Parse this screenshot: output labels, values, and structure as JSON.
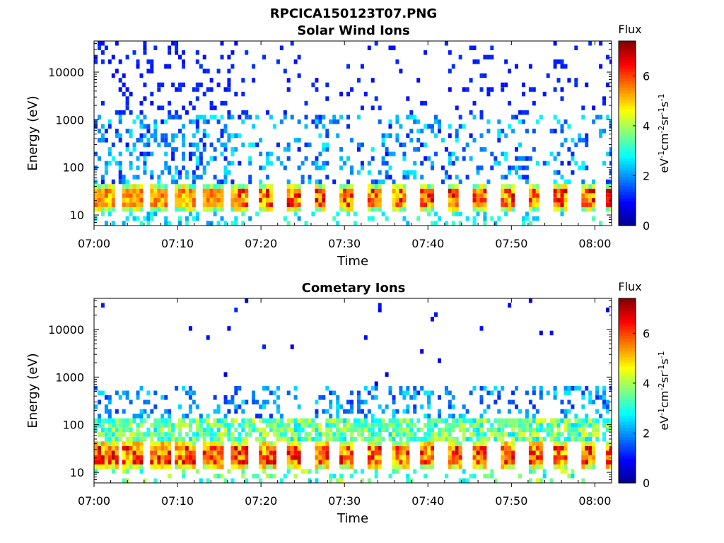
{
  "figure": {
    "title": "RPCICA150123T07.PNG",
    "colors": {
      "background": "#ffffff",
      "axis": "#000000"
    }
  },
  "colormap": [
    "#00008f",
    "#0000ff",
    "#0080ff",
    "#00ffff",
    "#80ff80",
    "#ffff00",
    "#ff8000",
    "#ff0000",
    "#800000"
  ],
  "chart_data": [
    {
      "type": "heatmap",
      "title": "Solar Wind Ions",
      "xlabel": "Time",
      "ylabel": "Energy (eV)",
      "xlim": [
        "07:00",
        "08:02"
      ],
      "x_ticks": [
        "07:00",
        "07:10",
        "07:20",
        "07:30",
        "07:40",
        "07:50",
        "08:00"
      ],
      "y_scale": "log",
      "ylim": [
        6,
        45000
      ],
      "y_ticks": [
        10,
        100,
        1000,
        10000
      ],
      "y_tick_labels": [
        "10",
        "100",
        "1000",
        "10000"
      ],
      "colorbar": {
        "label_top": "Flux",
        "label_unit": "eV-1cm-2sr-1s-1",
        "range": [
          0,
          7.4
        ],
        "ticks": [
          0,
          2,
          4,
          6
        ],
        "tick_labels": [
          "0",
          "2",
          "4",
          "6"
        ]
      },
      "approx_structure": {
        "sweep_period_min": 3.2,
        "peak_band_energy_eV": [
          15,
          35
        ],
        "peak_flux": 7,
        "early_bursts_flux": 5,
        "high_energy_sparse_flux": 1
      }
    },
    {
      "type": "heatmap",
      "title": "Cometary Ions",
      "xlabel": "Time",
      "ylabel": "Energy (eV)",
      "xlim": [
        "07:00",
        "08:02"
      ],
      "x_ticks": [
        "07:00",
        "07:10",
        "07:20",
        "07:30",
        "07:40",
        "07:50",
        "08:00"
      ],
      "y_scale": "log",
      "ylim": [
        6,
        45000
      ],
      "y_ticks": [
        10,
        100,
        1000,
        10000
      ],
      "y_tick_labels": [
        "10",
        "100",
        "1000",
        "10000"
      ],
      "colorbar": {
        "label_top": "Flux",
        "label_unit": "eV-1cm-2sr-1s-1",
        "range": [
          0,
          7.4
        ],
        "ticks": [
          0,
          2,
          4,
          6
        ],
        "tick_labels": [
          "0",
          "2",
          "4",
          "6"
        ]
      },
      "approx_structure": {
        "sweep_period_min": 3.2,
        "peak_band_energy_eV": [
          15,
          35
        ],
        "peak_flux": 7,
        "mid_band_energy_eV": [
          40,
          150
        ],
        "mid_band_flux": 3.5
      }
    }
  ]
}
